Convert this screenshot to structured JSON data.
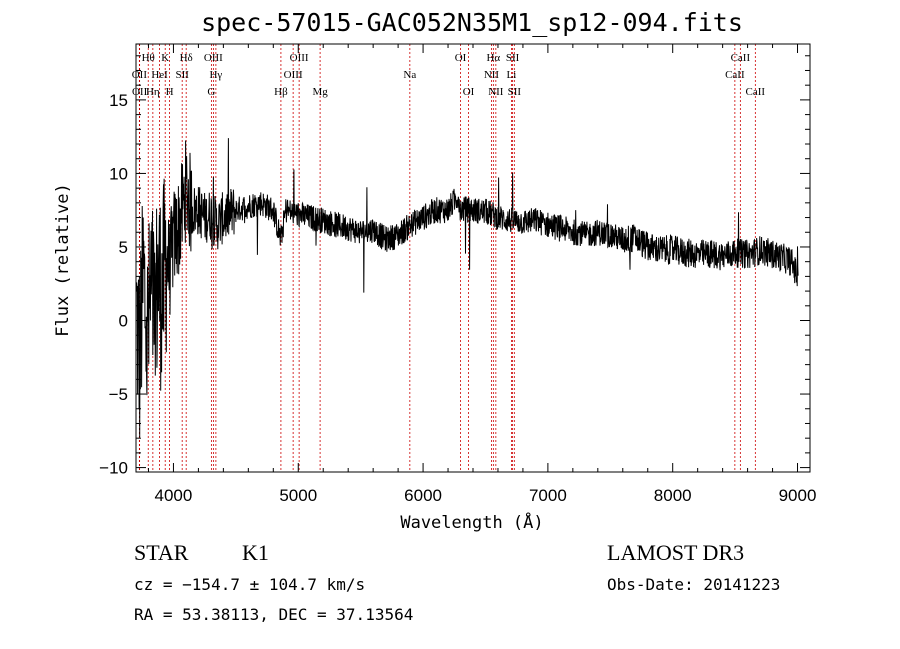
{
  "chart_data": {
    "type": "line",
    "title": "spec-57015-GAC052N35M1_sp12-094.fits",
    "xlabel": "Wavelength (Å)",
    "ylabel": "Flux (relative)",
    "xlim": [
      3700,
      9100
    ],
    "ylim": [
      -10.3,
      18.8
    ],
    "xticks": [
      4000,
      5000,
      6000,
      7000,
      8000,
      9000
    ],
    "xtick_labels": [
      "4000",
      "5000",
      "6000",
      "7000",
      "8000",
      "9000"
    ],
    "yticks": [
      -10,
      -5,
      0,
      5,
      10,
      15
    ],
    "ytick_labels": [
      "−10",
      "−5",
      "0",
      "5",
      "10",
      "15"
    ],
    "spectrum_anchor_points": {
      "wavelength": [
        3700,
        3730,
        3760,
        3790,
        3820,
        3850,
        3880,
        3910,
        3940,
        3970,
        4000,
        4050,
        4100,
        4150,
        4200,
        4250,
        4300,
        4350,
        4400,
        4500,
        4600,
        4700,
        4800,
        4860,
        4900,
        5000,
        5100,
        5200,
        5300,
        5400,
        5500,
        5600,
        5700,
        5800,
        5900,
        6000,
        6100,
        6200,
        6280,
        6300,
        6400,
        6500,
        6560,
        6600,
        6700,
        6800,
        6900,
        7000,
        7100,
        7200,
        7250,
        7300,
        7400,
        7500,
        7600,
        7700,
        7800,
        7900,
        8000,
        8100,
        8200,
        8300,
        8400,
        8500,
        8600,
        8650,
        8700,
        8800,
        8900,
        8950,
        9000
      ],
      "flux": [
        1.0,
        -2.5,
        3.0,
        -1.5,
        2.0,
        0.5,
        3.0,
        1.5,
        4.5,
        3.5,
        5.5,
        6.5,
        9.0,
        7.5,
        7.5,
        7.0,
        7.2,
        6.5,
        7.0,
        7.5,
        7.8,
        8.0,
        7.5,
        5.5,
        7.5,
        7.2,
        7.0,
        6.8,
        6.5,
        6.3,
        6.0,
        6.2,
        5.5,
        5.8,
        6.5,
        7.0,
        7.5,
        7.5,
        8.5,
        7.6,
        7.5,
        7.4,
        7.2,
        7.0,
        6.8,
        6.7,
        6.8,
        6.5,
        6.3,
        6.0,
        6.0,
        5.8,
        6.0,
        5.8,
        5.5,
        5.6,
        5.0,
        4.8,
        4.8,
        4.6,
        4.5,
        4.5,
        4.4,
        4.6,
        4.5,
        4.6,
        4.8,
        4.5,
        4.2,
        4.0,
        3.0
      ]
    },
    "emission_lines": [
      {
        "label": "OII",
        "wavelength": 3727,
        "row": 2
      },
      {
        "label": "Hθ",
        "wavelength": 3798,
        "row": 1
      },
      {
        "label": "OII",
        "wavelength": 3729,
        "row": 3
      },
      {
        "label": "Hη",
        "wavelength": 3835,
        "row": 3
      },
      {
        "label": "HeI",
        "wavelength": 3889,
        "row": 2
      },
      {
        "label": "K",
        "wavelength": 3934,
        "row": 1
      },
      {
        "label": "H",
        "wavelength": 3969,
        "row": 3
      },
      {
        "label": "SII",
        "wavelength": 4070,
        "row": 2
      },
      {
        "label": "Hδ",
        "wavelength": 4102,
        "row": 1
      },
      {
        "label": "G",
        "wavelength": 4304,
        "row": 3
      },
      {
        "label": "OIII",
        "wavelength": 4320,
        "row": 1
      },
      {
        "label": "Hγ",
        "wavelength": 4340,
        "row": 2
      },
      {
        "label": "Hβ",
        "wavelength": 4861,
        "row": 3
      },
      {
        "label": "OIII",
        "wavelength": 4959,
        "row": 2
      },
      {
        "label": "OIII",
        "wavelength": 5007,
        "row": 1
      },
      {
        "label": "Mg",
        "wavelength": 5175,
        "row": 3
      },
      {
        "label": "Na",
        "wavelength": 5894,
        "row": 2
      },
      {
        "label": "OI",
        "wavelength": 6300,
        "row": 1
      },
      {
        "label": "OI",
        "wavelength": 6364,
        "row": 3
      },
      {
        "label": "NII",
        "wavelength": 6548,
        "row": 2
      },
      {
        "label": "Hα",
        "wavelength": 6563,
        "row": 1
      },
      {
        "label": "NII",
        "wavelength": 6583,
        "row": 3
      },
      {
        "label": "SII",
        "wavelength": 6717,
        "row": 1
      },
      {
        "label": "Li",
        "wavelength": 6708,
        "row": 2
      },
      {
        "label": "SII",
        "wavelength": 6731,
        "row": 3
      },
      {
        "label": "CaII",
        "wavelength": 8498,
        "row": 2
      },
      {
        "label": "CaII",
        "wavelength": 8542,
        "row": 1
      },
      {
        "label": "CaII",
        "wavelength": 8662,
        "row": 3
      }
    ]
  },
  "info": {
    "class": "STAR",
    "subclass": "K1",
    "survey": "LAMOST DR3",
    "cz": "cz = −154.7 ± 104.7 km/s",
    "obs_date": "Obs-Date: 20141223",
    "coords": "RA =  53.38113, DEC =  37.13564"
  },
  "colors": {
    "spectrum": "#000000",
    "line_marker": "#cc0000",
    "axes": "#000000"
  }
}
